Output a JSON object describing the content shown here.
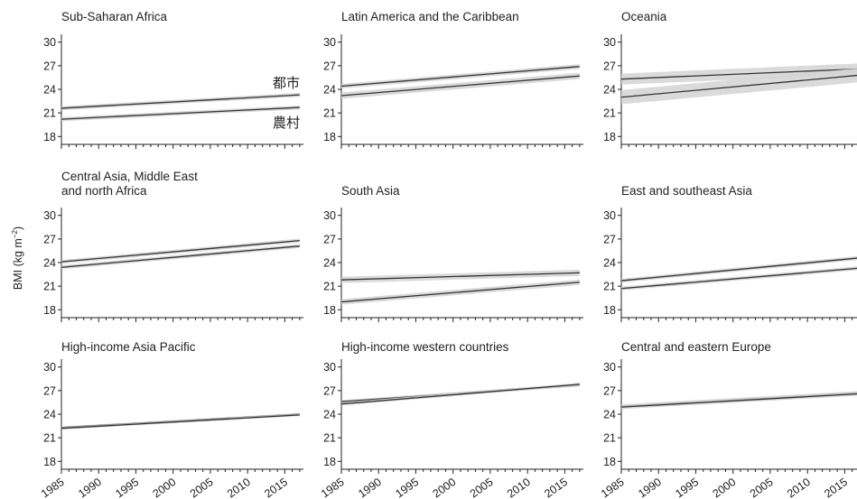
{
  "figure": {
    "ylabel_text": "BMI (kg m",
    "ylabel_sup": "−2",
    "ylabel_close": ")"
  },
  "chart_data": [
    {
      "type": "line",
      "title_lines": [
        "Sub-Saharan Africa"
      ],
      "x": [
        1985,
        2017
      ],
      "ylim": [
        17,
        31
      ],
      "yticks": [
        18,
        21,
        24,
        27,
        30
      ],
      "xticks": [
        1985,
        1990,
        1995,
        2000,
        2005,
        2010,
        2015
      ],
      "series": [
        {
          "name": "都市",
          "values": [
            21.6,
            23.3
          ],
          "ci": 0.25
        },
        {
          "name": "農村",
          "values": [
            20.2,
            21.7
          ],
          "ci": 0.25
        }
      ],
      "annotations": [
        "都市",
        "農村"
      ]
    },
    {
      "type": "line",
      "title_lines": [
        "Latin America and the Caribbean"
      ],
      "x": [
        1985,
        2017
      ],
      "ylim": [
        17,
        31
      ],
      "yticks": [
        18,
        21,
        24,
        27,
        30
      ],
      "xticks": [
        1985,
        1990,
        1995,
        2000,
        2005,
        2010,
        2015
      ],
      "series": [
        {
          "values": [
            24.4,
            26.9
          ],
          "ci": 0.3
        },
        {
          "values": [
            23.2,
            25.7
          ],
          "ci": 0.4
        }
      ]
    },
    {
      "type": "line",
      "title_lines": [
        "Oceania"
      ],
      "x": [
        1985,
        2017
      ],
      "ylim": [
        17,
        31
      ],
      "yticks": [
        18,
        21,
        24,
        27,
        30
      ],
      "xticks": [
        1985,
        1990,
        1995,
        2000,
        2005,
        2010,
        2015
      ],
      "series": [
        {
          "values": [
            25.3,
            26.6
          ],
          "ci": 0.7
        },
        {
          "values": [
            23.0,
            25.8
          ],
          "ci": 0.9
        }
      ]
    },
    {
      "type": "line",
      "title_lines": [
        "Central Asia, Middle East",
        "and north Africa"
      ],
      "x": [
        1985,
        2017
      ],
      "ylim": [
        17,
        31
      ],
      "yticks": [
        18,
        21,
        24,
        27,
        30
      ],
      "xticks": [
        1985,
        1990,
        1995,
        2000,
        2005,
        2010,
        2015
      ],
      "series": [
        {
          "values": [
            24.1,
            26.8
          ],
          "ci": 0.25
        },
        {
          "values": [
            23.4,
            26.1
          ],
          "ci": 0.25
        }
      ]
    },
    {
      "type": "line",
      "title_lines": [
        "South Asia"
      ],
      "x": [
        1985,
        2017
      ],
      "ylim": [
        17,
        31
      ],
      "yticks": [
        18,
        21,
        24,
        27,
        30
      ],
      "xticks": [
        1985,
        1990,
        1995,
        2000,
        2005,
        2010,
        2015
      ],
      "series": [
        {
          "values": [
            21.8,
            22.7
          ],
          "ci": 0.4
        },
        {
          "values": [
            19.0,
            21.5
          ],
          "ci": 0.35
        }
      ]
    },
    {
      "type": "line",
      "title_lines": [
        "East and southeast Asia"
      ],
      "x": [
        1985,
        2017
      ],
      "ylim": [
        17,
        31
      ],
      "yticks": [
        18,
        21,
        24,
        27,
        30
      ],
      "xticks": [
        1985,
        1990,
        1995,
        2000,
        2005,
        2010,
        2015
      ],
      "series": [
        {
          "values": [
            21.7,
            24.6
          ],
          "ci": 0.25
        },
        {
          "values": [
            20.7,
            23.3
          ],
          "ci": 0.25
        }
      ]
    },
    {
      "type": "line",
      "title_lines": [
        "High-income Asia Pacific"
      ],
      "x": [
        1985,
        2017
      ],
      "ylim": [
        17,
        31
      ],
      "yticks": [
        18,
        21,
        24,
        27,
        30
      ],
      "xticks": [
        1985,
        1990,
        1995,
        2000,
        2005,
        2010,
        2015
      ],
      "series": [
        {
          "values": [
            22.3,
            24.0
          ],
          "ci": 0.15
        },
        {
          "values": [
            22.2,
            23.9
          ],
          "ci": 0.15
        }
      ]
    },
    {
      "type": "line",
      "title_lines": [
        "High-income western countries"
      ],
      "x": [
        1985,
        2017
      ],
      "ylim": [
        17,
        31
      ],
      "yticks": [
        18,
        21,
        24,
        27,
        30
      ],
      "xticks": [
        1985,
        1990,
        1995,
        2000,
        2005,
        2010,
        2015
      ],
      "series": [
        {
          "values": [
            25.6,
            27.7
          ],
          "ci": 0.2
        },
        {
          "values": [
            25.3,
            27.8
          ],
          "ci": 0.2
        }
      ]
    },
    {
      "type": "line",
      "title_lines": [
        "Central and eastern Europe"
      ],
      "x": [
        1985,
        2017
      ],
      "ylim": [
        17,
        31
      ],
      "yticks": [
        18,
        21,
        24,
        27,
        30
      ],
      "xticks": [
        1985,
        1990,
        1995,
        2000,
        2005,
        2010,
        2015
      ],
      "series": [
        {
          "values": [
            25.0,
            26.7
          ],
          "ci": 0.25
        },
        {
          "values": [
            24.9,
            26.6
          ],
          "ci": 0.25
        }
      ]
    }
  ]
}
